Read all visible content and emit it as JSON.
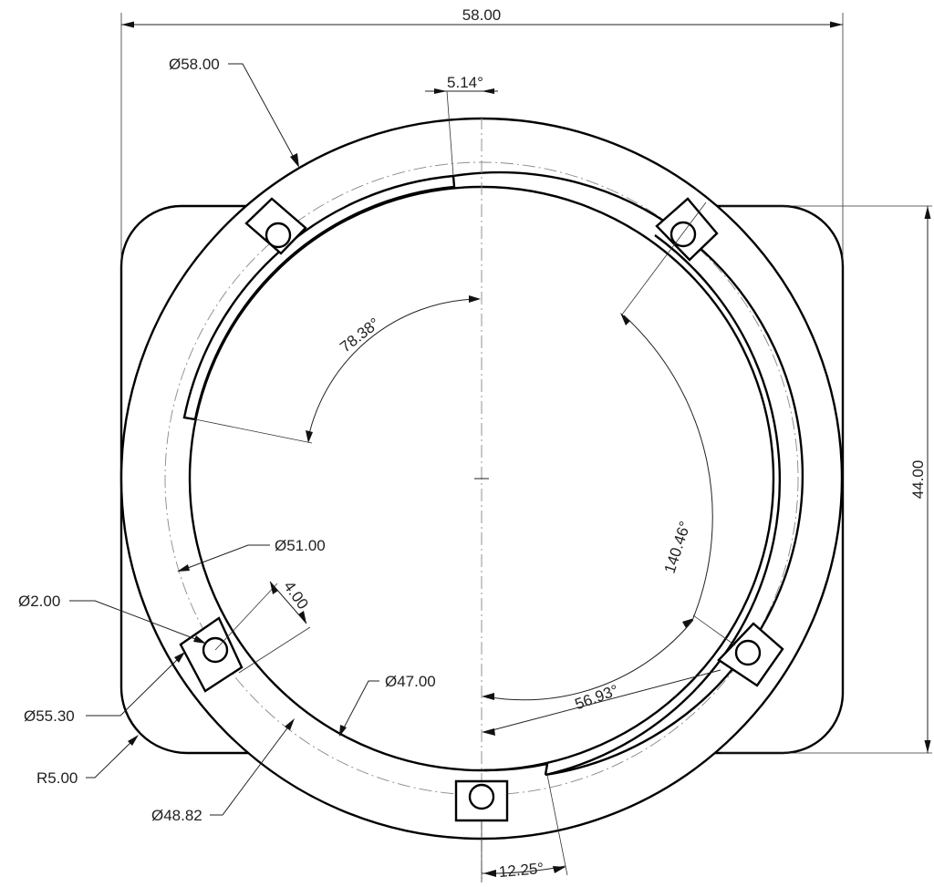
{
  "drawing": {
    "dimensions": {
      "overall_width": "58.00",
      "overall_height": "44.00",
      "outer_diameter": "Ø58.00",
      "tab_angle": "5.14°",
      "inner_angle": "78.38°",
      "right_angle": "140.46°",
      "bottom_angle": "56.93°",
      "slot_angle": "12.25°",
      "bolt_circle": "Ø51.00",
      "slot_width": "4.00",
      "hole_diameter": "Ø2.00",
      "ring_diameter": "Ø55.30",
      "corner_radius": "R5.00",
      "bore_diameter": "Ø47.00",
      "lip_diameter": "Ø48.82"
    }
  }
}
